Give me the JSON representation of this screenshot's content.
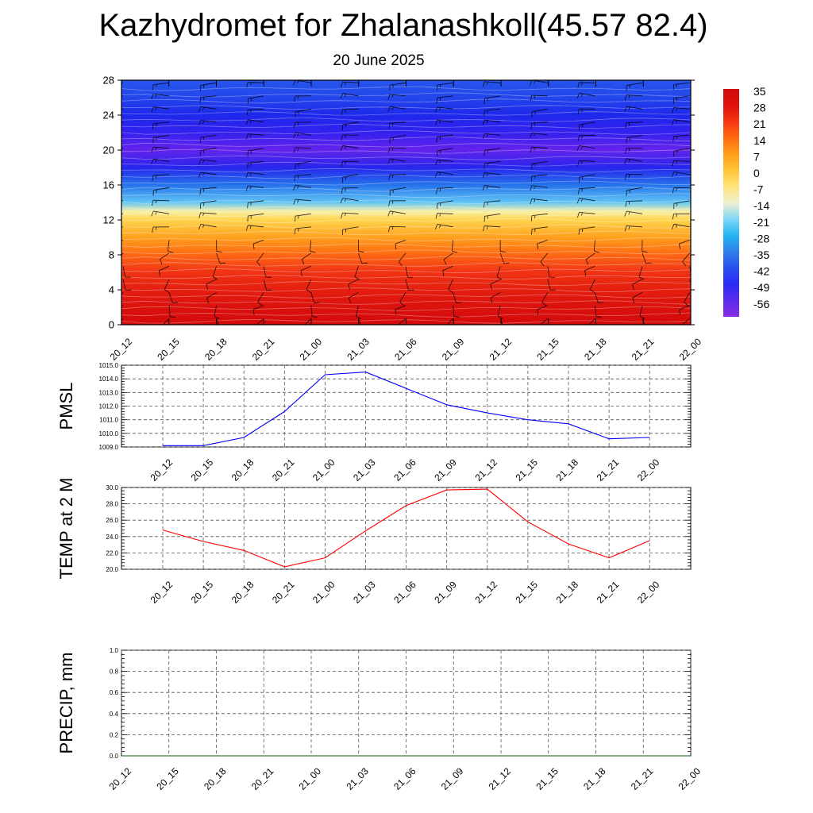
{
  "header": {
    "title": "Kazhydromet for Zhalanashkoll(45.57 82.4)",
    "subtitle": "20 June 2025"
  },
  "chart_data": [
    {
      "type": "heatmap",
      "title": "",
      "xlabel": "",
      "ylabel": "",
      "x_ticks": [
        "20_12",
        "20_15",
        "20_18",
        "20_21",
        "21_00",
        "21_03",
        "21_06",
        "21_09",
        "21_12",
        "21_15",
        "21_18",
        "21_21",
        "22_00"
      ],
      "y_ticks": [
        "0",
        "4",
        "8",
        "12",
        "16",
        "20",
        "24",
        "28"
      ],
      "ylim": [
        0,
        28
      ],
      "colorbar": {
        "labels": [
          "35",
          "28",
          "21",
          "14",
          "7",
          "0",
          "-7",
          "-14",
          "-21",
          "-28",
          "-35",
          "-42",
          "-49",
          "-56"
        ],
        "colors": [
          "#8a2be2",
          "#5a2cf0",
          "#2a2af4",
          "#2850f0",
          "#2f7fea",
          "#23b4f2",
          "#7fd7f7",
          "#f0f0d0",
          "#ffe37a",
          "#ffc437",
          "#ff9f1a",
          "#ff6a10",
          "#f53513",
          "#e0100c",
          "#d00a0a"
        ]
      },
      "temperature_profile": [
        {
          "level": 0,
          "value": 30
        },
        {
          "level": 2,
          "value": 27
        },
        {
          "level": 4,
          "value": 24
        },
        {
          "level": 6,
          "value": 20
        },
        {
          "level": 8,
          "value": 13
        },
        {
          "level": 10,
          "value": 4
        },
        {
          "level": 12,
          "value": -6
        },
        {
          "level": 13,
          "value": -12
        },
        {
          "level": 14,
          "value": -22
        },
        {
          "level": 16,
          "value": -34
        },
        {
          "level": 18,
          "value": -46
        },
        {
          "level": 20,
          "value": -56
        },
        {
          "level": 22,
          "value": -50
        },
        {
          "level": 24,
          "value": -44
        },
        {
          "level": 26,
          "value": -40
        },
        {
          "level": 28,
          "value": -38
        }
      ]
    },
    {
      "type": "line",
      "title": "",
      "xlabel": "",
      "ylabel": "PMSL",
      "categories": [
        "20_12",
        "20_15",
        "20_18",
        "20_21",
        "21_00",
        "21_03",
        "21_06",
        "21_09",
        "21_12",
        "21_15",
        "21_18",
        "21_21",
        "22_00"
      ],
      "y_ticks": [
        "1009.0",
        "1010.0",
        "1011.0",
        "1012.0",
        "1013.0",
        "1014.0",
        "1015.0"
      ],
      "ylim": [
        1009.0,
        1015.0
      ],
      "series": [
        {
          "color": "#0000ff",
          "values": [
            1009.1,
            1009.1,
            1009.7,
            1011.6,
            1014.3,
            1014.5,
            1013.3,
            1012.1,
            1011.5,
            1011.0,
            1010.7,
            1009.6,
            1009.7
          ]
        }
      ]
    },
    {
      "type": "line",
      "title": "",
      "xlabel": "",
      "ylabel": "TEMP at 2 M",
      "categories": [
        "20_12",
        "20_15",
        "20_18",
        "20_21",
        "21_00",
        "21_03",
        "21_06",
        "21_09",
        "21_12",
        "21_15",
        "21_18",
        "21_21",
        "22_00"
      ],
      "y_ticks": [
        "20.0",
        "22.0",
        "24.0",
        "26.0",
        "28.0",
        "30.0"
      ],
      "ylim": [
        20.0,
        30.0
      ],
      "series": [
        {
          "color": "#ff0000",
          "values": [
            24.8,
            23.4,
            22.3,
            20.3,
            21.4,
            24.7,
            27.8,
            29.7,
            29.8,
            25.8,
            23.1,
            21.4,
            23.5
          ]
        }
      ]
    },
    {
      "type": "line",
      "title": "",
      "xlabel": "",
      "ylabel": "PRECIP, mm",
      "categories": [
        "20_12",
        "20_15",
        "20_18",
        "20_21",
        "21_00",
        "21_03",
        "21_06",
        "21_09",
        "21_12",
        "21_15",
        "21_18",
        "21_21",
        "22_00"
      ],
      "y_ticks": [
        "0.0",
        "0.2",
        "0.4",
        "0.6",
        "0.8",
        "1.0"
      ],
      "ylim": [
        0.0,
        1.0
      ],
      "series": [
        {
          "color": "#006400",
          "values": [
            0,
            0,
            0,
            0,
            0,
            0,
            0,
            0,
            0,
            0,
            0,
            0,
            0
          ]
        }
      ]
    }
  ]
}
